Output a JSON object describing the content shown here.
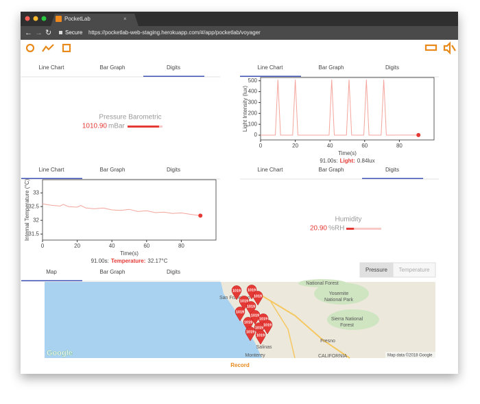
{
  "browser": {
    "tab_title": "PocketLab",
    "secure": "Secure",
    "url": "https://pocketlab-web-staging.herokuapp.com/#/app/pocketlab/voyager"
  },
  "panels": [
    {
      "tabs": [
        "Line Chart",
        "Bar Graph",
        "Digits"
      ],
      "active": 2,
      "title": "Pressure Barometric",
      "value": "1010.90",
      "unit": "mBar"
    },
    {
      "tabs": [
        "Line Chart",
        "Bar Graph",
        "Digits"
      ],
      "active": 0
    },
    {
      "tabs": [
        "Line Chart",
        "Bar Graph",
        "Digits"
      ],
      "active": 0
    },
    {
      "tabs": [
        "Line Chart",
        "Bar Graph",
        "Digits"
      ],
      "active": 2,
      "title": "Humidity",
      "value": "20.90",
      "unit": "%RH"
    },
    {
      "tabs": [
        "Map",
        "Bar Graph",
        "Digits"
      ],
      "active": 0
    }
  ],
  "map": {
    "buttons": [
      "Pressure",
      "Temperature"
    ],
    "active_button": 0,
    "places": [
      "San Francisco",
      "National Forest",
      "Yosemite",
      "National Park",
      "Sierra National",
      "Forest",
      "Fresno",
      "Salinas",
      "Monterey",
      "CALIFORNIA"
    ],
    "markers": [
      "1019",
      "1019",
      "1019",
      "1019",
      "1019",
      "1019",
      "1019",
      "1019",
      "1019",
      "1019",
      "1019",
      "1019",
      "1019"
    ],
    "attribution": "Map data ©2018 Google",
    "logo": "Google"
  },
  "record": "Record",
  "chart_data": [
    {
      "type": "line",
      "ylabel": "Light Intensity (lux)",
      "xlabel": "Time(s)",
      "color": "#f4a49c",
      "x": [
        0,
        8.5,
        10,
        11.5,
        18.5,
        20,
        21.5,
        39.5,
        41,
        42.5,
        49.5,
        51,
        52.5,
        59.5,
        61,
        62.5,
        69.5,
        71,
        72.5,
        91
      ],
      "values": [
        0,
        0,
        510,
        0,
        0,
        510,
        0,
        0,
        510,
        0,
        0,
        510,
        0,
        0,
        510,
        0,
        0,
        510,
        0,
        0.84
      ],
      "xlim": [
        0,
        100
      ],
      "xticks": [
        0,
        20,
        40,
        60,
        80
      ],
      "ylim": [
        -44,
        530
      ],
      "yticks": [
        0,
        100,
        200,
        300,
        400,
        500
      ],
      "status_time": "91.00s:",
      "status_label": "Light:",
      "status_value": "0.84lux"
    },
    {
      "type": "line",
      "ylabel": "Internal Temperature (°C)",
      "xlabel": "Time(s)",
      "color": "#f4a49c",
      "x": [
        0,
        5,
        10,
        12,
        15,
        20,
        22,
        25,
        30,
        35,
        40,
        45,
        50,
        55,
        60,
        65,
        70,
        75,
        80,
        85,
        91
      ],
      "values": [
        32.6,
        32.55,
        32.52,
        32.58,
        32.5,
        32.48,
        32.54,
        32.45,
        32.42,
        32.45,
        32.38,
        32.36,
        32.4,
        32.32,
        32.35,
        32.28,
        32.3,
        32.25,
        32.27,
        32.22,
        32.17
      ],
      "xlim": [
        0,
        100
      ],
      "xticks": [
        0,
        20,
        40,
        60,
        80
      ],
      "ylim": [
        31.28,
        33.48
      ],
      "yticks": [
        31.5,
        32,
        32.5,
        33
      ],
      "status_time": "91.00s:",
      "status_label": "Temperature:",
      "status_value": "32.17°C"
    }
  ]
}
